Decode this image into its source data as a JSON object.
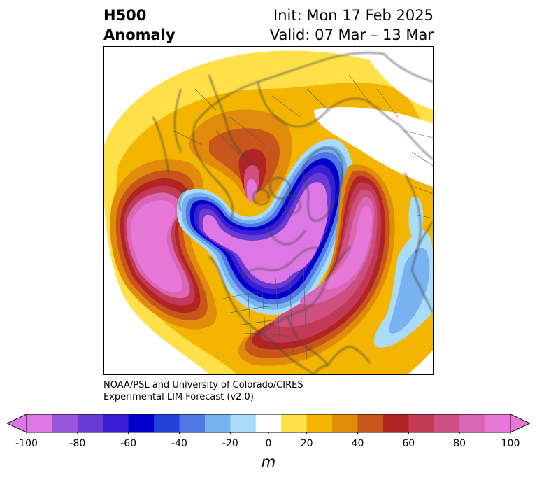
{
  "title": {
    "left_line1": "H500",
    "left_line2": "Anomaly",
    "init": "Init: Mon 17 Feb 2025",
    "valid": "Valid: 07 Mar – 13 Mar"
  },
  "credit": {
    "line1": "NOAA/PSL and University of Colorado/CIRES",
    "line2": "Experimental LIM Forecast (v2.0)"
  },
  "colorbar": {
    "unit": "m",
    "ticks": [
      "-100",
      "-80",
      "-60",
      "-40",
      "-20",
      "0",
      "20",
      "40",
      "60",
      "80",
      "100"
    ],
    "levels": [
      -100,
      -90,
      -80,
      -70,
      -60,
      -50,
      -40,
      -30,
      -20,
      -10,
      10,
      20,
      30,
      40,
      50,
      60,
      70,
      80,
      90,
      100
    ],
    "bins": [
      {
        "color": "#dd77e6"
      },
      {
        "color": "#9a55dd"
      },
      {
        "color": "#6a3ad6"
      },
      {
        "color": "#3a1fd2"
      },
      {
        "color": "#0000cc"
      },
      {
        "color": "#2242d9"
      },
      {
        "color": "#4f78e4"
      },
      {
        "color": "#78b2f0"
      },
      {
        "color": "#aadcfa"
      },
      {
        "color": "#ffffff"
      },
      {
        "color": "#ffe048"
      },
      {
        "color": "#f3b500"
      },
      {
        "color": "#e08b0a"
      },
      {
        "color": "#c8551a"
      },
      {
        "color": "#b22424"
      },
      {
        "color": "#c23a55"
      },
      {
        "color": "#cf4f80"
      },
      {
        "color": "#da66b6"
      },
      {
        "color": "#e878d8"
      }
    ],
    "under_color": "#dd77e6",
    "over_color": "#e878d8"
  },
  "map": {
    "projection": "polar stereographic, North Pole",
    "features": [
      "coastlines",
      "country borders",
      "US state borders"
    ]
  }
}
